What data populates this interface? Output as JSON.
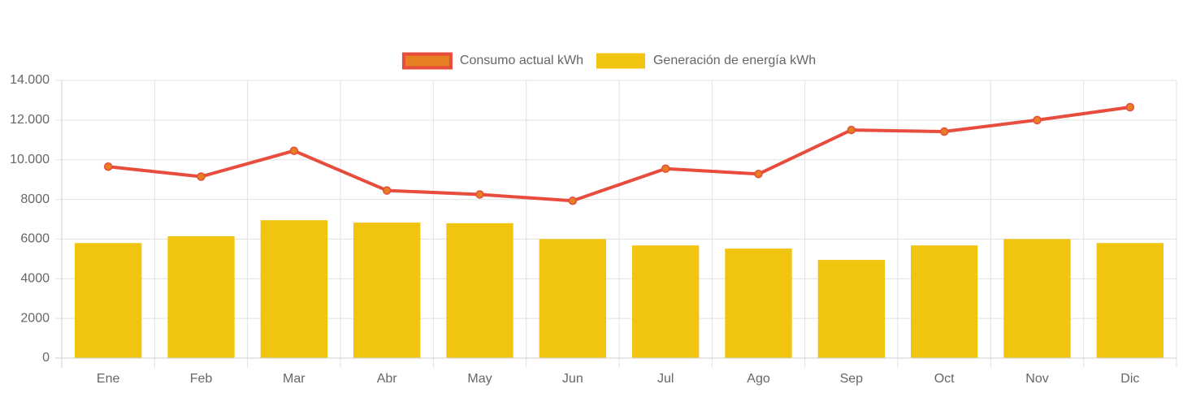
{
  "chart_data": {
    "type": "bar",
    "categories": [
      "Ene",
      "Feb",
      "Mar",
      "Abr",
      "May",
      "Jun",
      "Jul",
      "Ago",
      "Sep",
      "Oct",
      "Nov",
      "Dic"
    ],
    "series": [
      {
        "name": "Consumo actual kWh",
        "type": "line",
        "color": "#e74c3c",
        "point_color": "#e67e22",
        "values": [
          9650,
          9150,
          10450,
          8450,
          8250,
          7930,
          9550,
          9280,
          11500,
          11420,
          12000,
          12650
        ]
      },
      {
        "name": "Generación de energía kWh",
        "type": "bar",
        "color": "#f1c40f",
        "values": [
          5800,
          6140,
          6950,
          6830,
          6800,
          6000,
          5680,
          5520,
          4950,
          5680,
          6000,
          5800
        ]
      }
    ],
    "ylim": [
      0,
      14000
    ],
    "yticks": [
      0,
      2000,
      4000,
      6000,
      8000,
      {
        "value": 10000,
        "label": "10.000"
      },
      {
        "value": 12000,
        "label": "12.000"
      },
      {
        "value": 14000,
        "label": "14.000"
      }
    ],
    "grid": true,
    "legend": "top"
  }
}
